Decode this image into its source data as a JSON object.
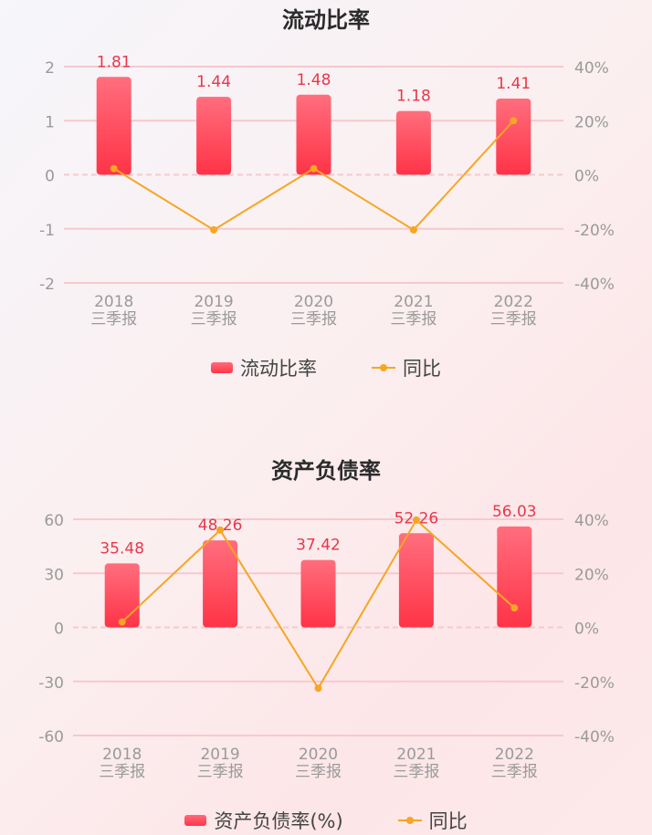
{
  "colors": {
    "bar_top": "#ff6e7d",
    "bar_bottom": "#ff3347",
    "line": "#f5a623",
    "label": "#e8374a",
    "axis": "#9a9a9a",
    "grid": "#f6c9cd"
  },
  "chart_data": [
    {
      "type": "bar",
      "title": "流动比率",
      "categories": [
        "2018",
        "2019",
        "2020",
        "2021",
        "2022"
      ],
      "category_sub": "三季报",
      "left_axis": {
        "ticks": [
          "2",
          "1",
          "0",
          "-1",
          "-2"
        ],
        "min": -2,
        "max": 2
      },
      "right_axis": {
        "ticks": [
          "40%",
          "20%",
          "0%",
          "-20%",
          "-40%"
        ],
        "min": -40,
        "max": 40
      },
      "series": [
        {
          "name": "流动比率",
          "type": "bar",
          "values": [
            1.81,
            1.44,
            1.48,
            1.18,
            1.41
          ],
          "labels": [
            "1.81",
            "1.44",
            "1.48",
            "1.18",
            "1.41"
          ]
        },
        {
          "name": "同比",
          "type": "line",
          "values": [
            2.3,
            -20.4,
            2.3,
            -20.4,
            20
          ]
        }
      ],
      "legend": [
        "流动比率",
        "同比"
      ]
    },
    {
      "type": "bar",
      "title": "资产负债率",
      "categories": [
        "2018",
        "2019",
        "2020",
        "2021",
        "2022"
      ],
      "category_sub": "三季报",
      "left_axis": {
        "ticks": [
          "60",
          "30",
          "0",
          "-30",
          "-60"
        ],
        "min": -60,
        "max": 60
      },
      "right_axis": {
        "ticks": [
          "40%",
          "20%",
          "0%",
          "-20%",
          "-40%"
        ],
        "min": -40,
        "max": 40
      },
      "series": [
        {
          "name": "资产负债率(%)",
          "type": "bar",
          "values": [
            35.48,
            48.26,
            37.42,
            52.26,
            56.03
          ],
          "labels": [
            "35.48",
            "48.26",
            "37.42",
            "52.26",
            "56.03"
          ]
        },
        {
          "name": "同比",
          "type": "line",
          "values": [
            2.0,
            36.0,
            -22.5,
            39.7,
            7.2
          ]
        }
      ],
      "legend": [
        "资产负债率(%)",
        "同比"
      ]
    }
  ]
}
